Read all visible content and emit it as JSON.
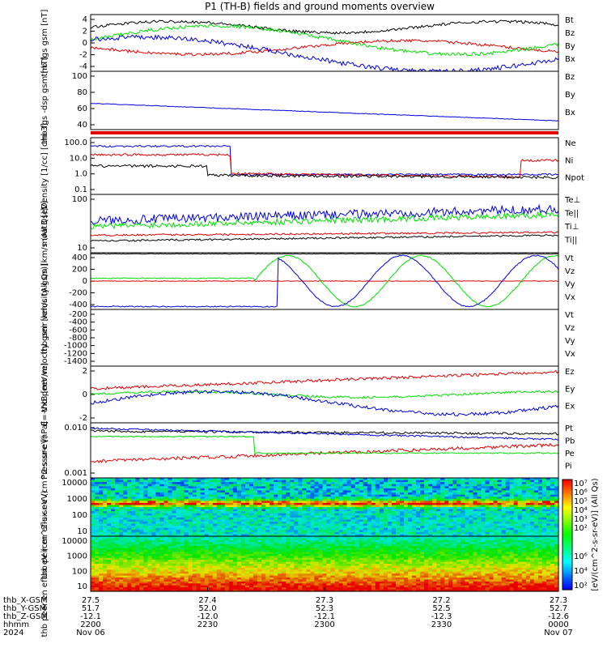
{
  "title": "P1 (TH-B) fields and ground moments overview",
  "colors": {
    "black": "#000000",
    "red": "#e00000",
    "green": "#00dd00",
    "blue": "#0000e0"
  },
  "chart_data": {
    "type": "line",
    "x_ticks_values": [
      "27.5",
      "27.4",
      "27.3",
      "27.2",
      "27.3"
    ],
    "orbit_rows": [
      {
        "label": "thb_X-GSM",
        "values": [
          "27.5",
          "27.4",
          "27.3",
          "27.2",
          "27.3"
        ]
      },
      {
        "label": "thb_Y-GSM",
        "values": [
          "51.7",
          "52.0",
          "52.3",
          "52.5",
          "52.7"
        ]
      },
      {
        "label": "thb_Z-GSM",
        "values": [
          "-12.1",
          "-12.0",
          "-12.1",
          "-12.3",
          "-12.6"
        ]
      },
      {
        "label": "hhmm",
        "values": [
          "2200",
          "2230",
          "2300",
          "2330",
          "0000"
        ]
      },
      {
        "label": "2024",
        "values": [
          "Nov 06",
          "",
          "",
          "",
          "Nov 07"
        ]
      }
    ],
    "panels": [
      {
        "ylabel": "thb fgs gsm [nT]",
        "yticks": [
          "4",
          "2",
          "0",
          "-2",
          "-4"
        ],
        "legend": [
          {
            "name": "Bt",
            "color": "black"
          },
          {
            "name": "Bz",
            "color": "red"
          },
          {
            "name": "By",
            "color": "green"
          },
          {
            "name": "Bx",
            "color": "blue"
          }
        ]
      },
      {
        "ylabel": "thb fgs -dsp gsm [nT]",
        "yticks": [
          "100",
          "80",
          "60",
          "40"
        ],
        "legend": [
          {
            "name": "Bz",
            "color": "red"
          },
          {
            "name": "By",
            "color": "green"
          },
          {
            "name": "Bx",
            "color": "blue"
          }
        ]
      },
      {
        "ylabel": "Density [1/cc] [cm-3]",
        "yticks": [
          "100.0",
          "10.0",
          "1.0",
          "0.1"
        ],
        "legend": [
          {
            "name": "Ne",
            "color": "red"
          },
          {
            "name": "Ni",
            "color": "black"
          },
          {
            "name": "Npot",
            "color": "blue"
          }
        ]
      },
      {
        "ylabel": "moat3 [eV]",
        "yticks": [
          "100",
          "10"
        ],
        "legend": [
          {
            "name": "Te⊥",
            "color": "red"
          },
          {
            "name": "Te||",
            "color": "black"
          },
          {
            "name": "Ti⊥",
            "color": "green"
          },
          {
            "name": "Ti||",
            "color": "green"
          }
        ]
      },
      {
        "ylabel": "thb peir velocity gsm [km/s (All Qs)]",
        "yticks": [
          "400",
          "200",
          "0",
          "-200",
          "-400"
        ],
        "legend": [
          {
            "name": "Vt",
            "color": "black"
          },
          {
            "name": "Vz",
            "color": "red"
          },
          {
            "name": "Vy",
            "color": "green"
          },
          {
            "name": "Vx",
            "color": "blue"
          }
        ]
      },
      {
        "ylabel": "thb peer velocity gsm [km/s (All Qs)]",
        "yticks": [
          "-200",
          "-400",
          "-600",
          "-800",
          "-1000",
          "-1200",
          "-1400"
        ],
        "legend": [
          {
            "name": "Vt",
            "color": "black"
          },
          {
            "name": "Vz",
            "color": "red"
          },
          {
            "name": "Vy",
            "color": "green"
          },
          {
            "name": "Vx",
            "color": "blue"
          }
        ]
      },
      {
        "ylabel": "E=-VxB [mV/m]",
        "yticks": [
          "2",
          "0",
          "-2"
        ],
        "legend": [
          {
            "name": "Ez",
            "color": "red"
          },
          {
            "name": "Ey",
            "color": "green"
          },
          {
            "name": "Ex",
            "color": "blue"
          }
        ]
      },
      {
        "ylabel": "Pressure [nPa]",
        "yticks": [
          "0.010",
          "0.001"
        ],
        "legend": [
          {
            "name": "Pt",
            "color": "black"
          },
          {
            "name": "Pb",
            "color": "red"
          },
          {
            "name": "Pe",
            "color": "green"
          },
          {
            "name": "Pi",
            "color": "blue"
          }
        ]
      },
      {
        "ylabel": "thb peir en eflux eV (cm^2-s-sr-eV)",
        "yticks": [
          "10000",
          "1000",
          "100",
          "10"
        ]
      },
      {
        "ylabel": "thb peer en eflux eV (cm^2-s-sr-eV)",
        "yticks": [
          "10000",
          "1000",
          "100",
          "10"
        ]
      }
    ],
    "colorbar": {
      "label": "[eV/(cm^2-s-sr-eV)] (All Qs)",
      "ticks_top": [
        "10⁷",
        "10⁶",
        "10⁵",
        "10⁴",
        "10³",
        "10²"
      ],
      "ticks_bottom": [
        "10⁶",
        "10⁴",
        "10²"
      ]
    }
  }
}
